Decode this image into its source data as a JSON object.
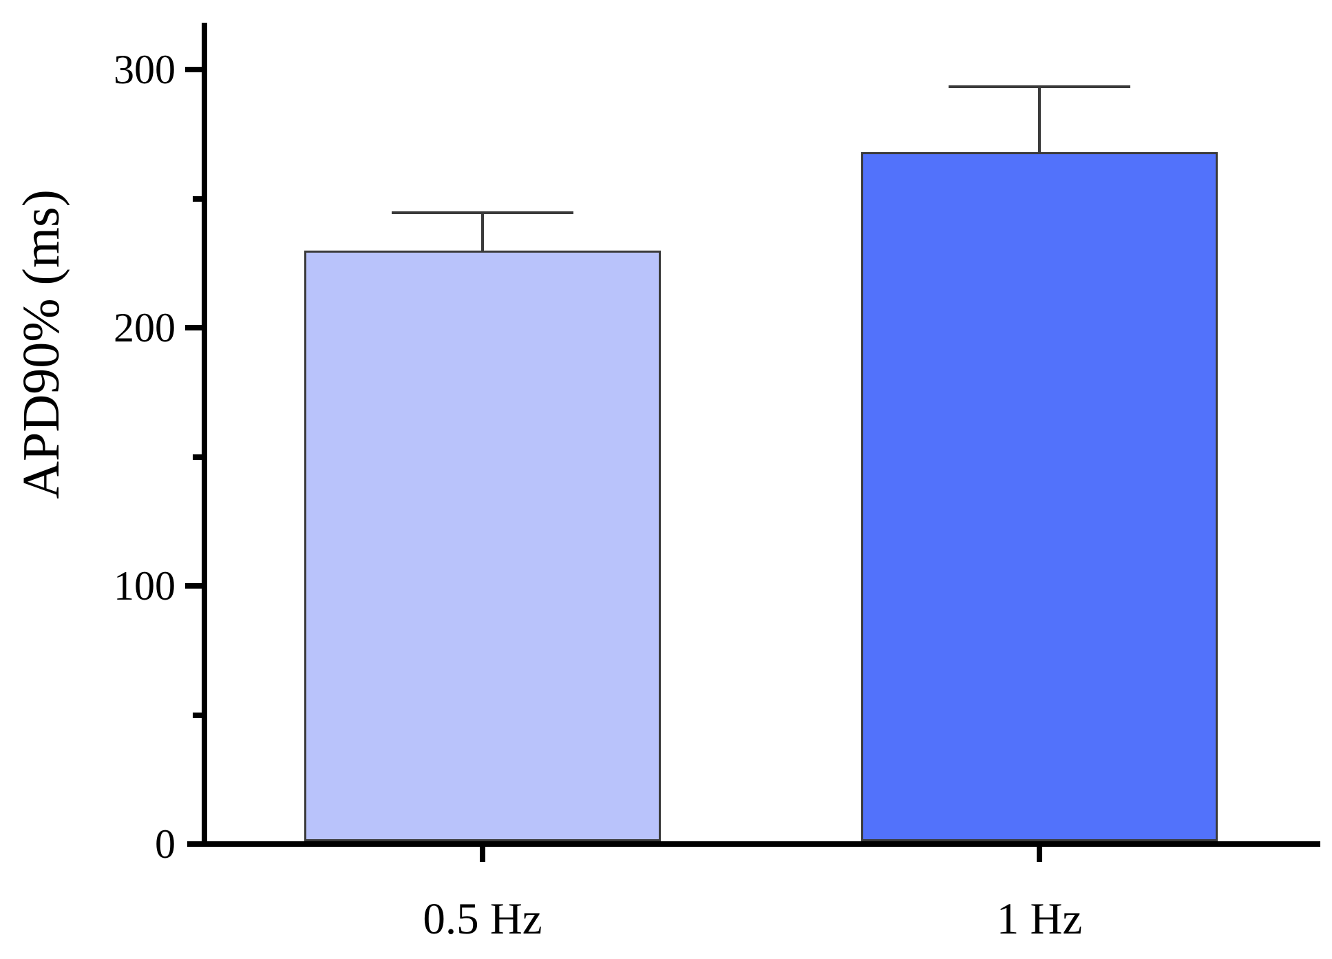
{
  "figure": {
    "kind": "scientific-bar-chart"
  },
  "chart_data": {
    "type": "bar",
    "title": "",
    "categories": [
      "0.5 Hz",
      "1 Hz"
    ],
    "values": [
      230,
      268
    ],
    "errors_upper": [
      15,
      26
    ],
    "xlabel": "",
    "ylabel": "APD90% (ms)",
    "ylim": [
      0,
      320
    ],
    "yticks_major": [
      0,
      100,
      200,
      300
    ],
    "yticks_minor": [
      50,
      150,
      250
    ],
    "grid": false,
    "legend_position": "none",
    "bar_colors": [
      "#b9c3fb",
      "#5272fb"
    ],
    "bar_edge_color": "#3a3a3a",
    "error_bar_color": "#3a3a3a",
    "axis_color": "#000000",
    "text_color": "#000000"
  }
}
